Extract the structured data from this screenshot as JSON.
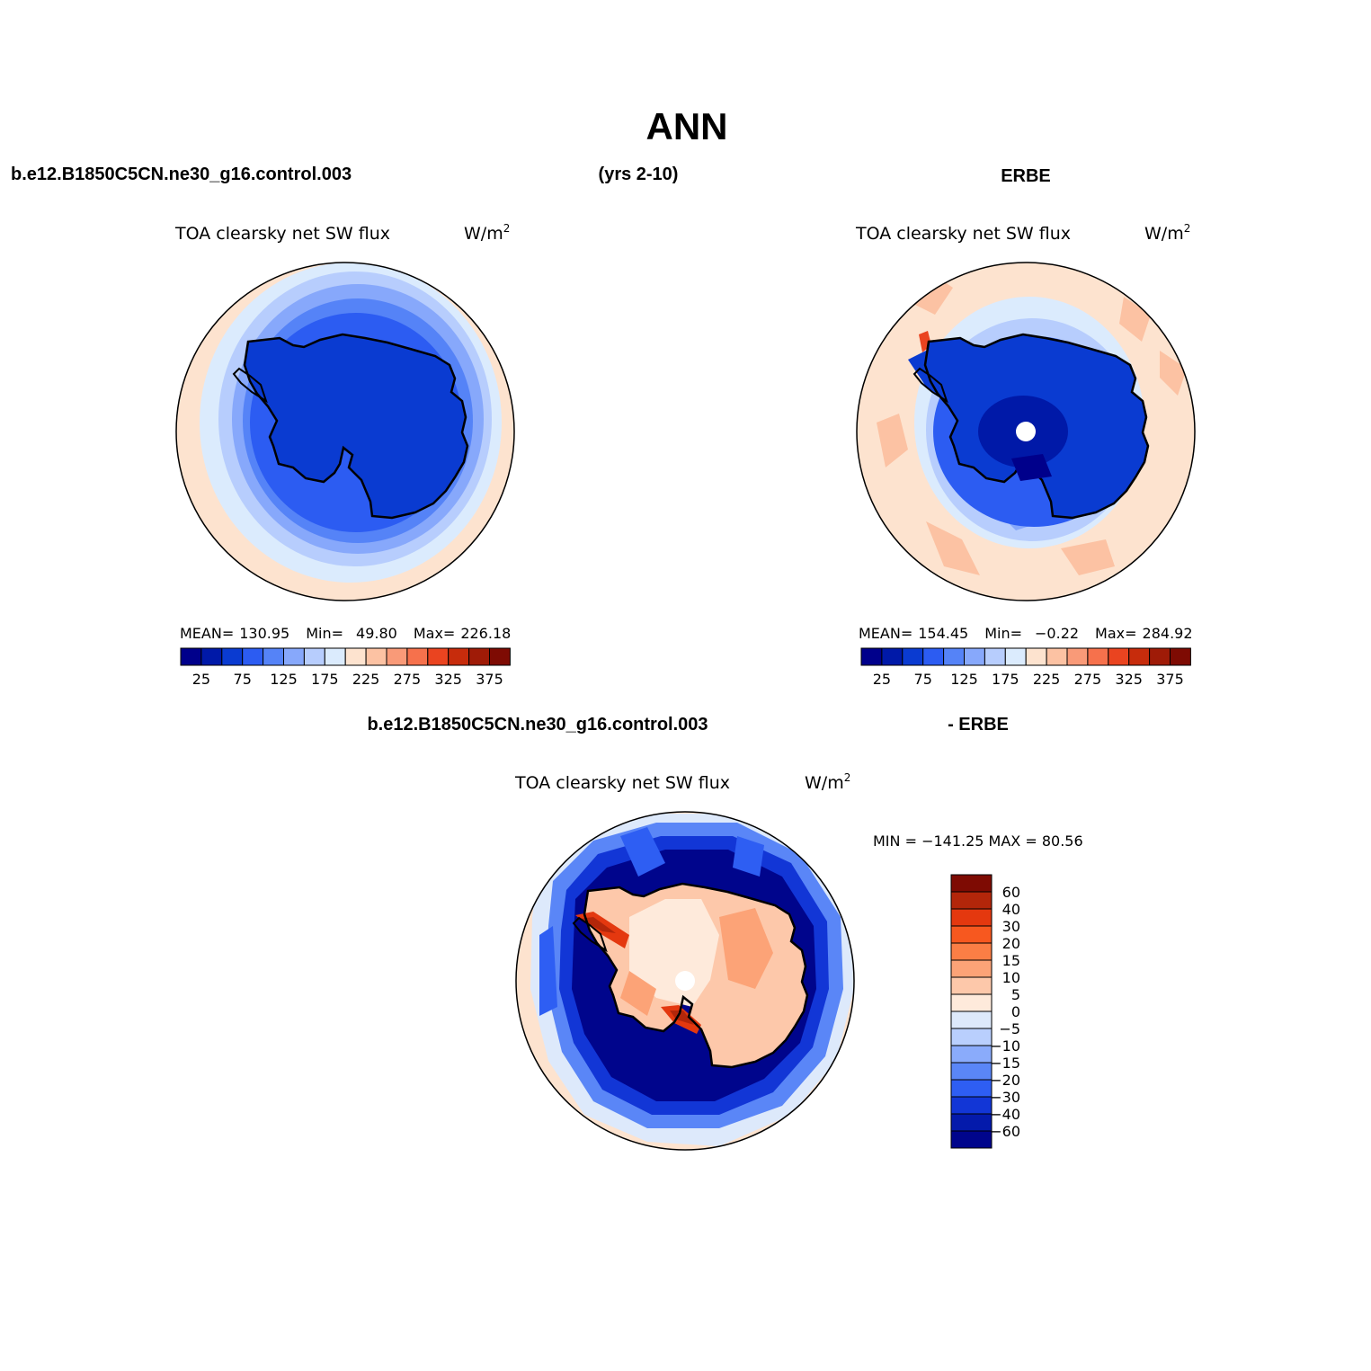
{
  "page": {
    "title": "ANN",
    "case_name": "b.e12.B1850C5CN.ne30_g16.control.003",
    "years": "(yrs 2-10)",
    "obs_name": "ERBE",
    "diff_case_name": "b.e12.B1850C5CN.ne30_g16.control.003",
    "diff_obs_name": "- ERBE"
  },
  "panels": {
    "model": {
      "variable": "TOA clearsky net SW flux",
      "units_base": "W/m",
      "units_exp": "2",
      "stats": {
        "mean_label": "MEAN=",
        "mean": "130.95",
        "min_label": "Min=",
        "min": "49.80",
        "max_label": "Max=",
        "max": "226.18"
      }
    },
    "obs": {
      "variable": "TOA clearsky net SW flux",
      "units_base": "W/m",
      "units_exp": "2",
      "stats": {
        "mean_label": "MEAN=",
        "mean": "154.45",
        "min_label": "Min=",
        "min": "−0.22",
        "max_label": "Max=",
        "max": "284.92"
      }
    },
    "diff": {
      "variable": "TOA clearsky net SW flux",
      "units_base": "W/m",
      "units_exp": "2",
      "minmax": "MIN = −141.25 MAX =  80.56"
    }
  },
  "colorbar_main": {
    "colors": [
      "#00008b",
      "#0019a8",
      "#0a3bd1",
      "#2c5cf2",
      "#5583f7",
      "#87a8fb",
      "#b7cdfd",
      "#dbebfd",
      "#fde3cf",
      "#fcc2a3",
      "#f99a78",
      "#f6714c",
      "#ea4420",
      "#c72c0c",
      "#9f1b07",
      "#7e0b03"
    ],
    "labels": [
      "25",
      "75",
      "125",
      "175",
      "225",
      "275",
      "325",
      "375"
    ]
  },
  "colorbar_diff": {
    "colors_top_to_bottom": [
      "#7e0b03",
      "#b3260a",
      "#e4380f",
      "#f7581f",
      "#fb7e45",
      "#fca377",
      "#fdc8aa",
      "#feeadb",
      "#dde9fb",
      "#b9cffd",
      "#8aabfb",
      "#5a86f7",
      "#2e5ef3",
      "#1236d6",
      "#041aab",
      "#00058c"
    ],
    "labels_top_to_bottom": [
      "60",
      "40",
      "30",
      "20",
      "15",
      "10",
      "5",
      "0",
      "−5",
      "−10",
      "−15",
      "−20",
      "−30",
      "−40",
      "−60"
    ]
  },
  "chart_data": [
    {
      "type": "heatmap",
      "projection": "south polar stereographic",
      "title": "TOA clearsky net SW flux",
      "units": "W/m^2",
      "source": "b.e12.B1850C5CN.ne30_g16.control.003",
      "mean": 130.95,
      "min": 49.8,
      "max": 226.18,
      "contour_levels": [
        25,
        50,
        75,
        100,
        125,
        150,
        175,
        200,
        225,
        250,
        275,
        300,
        325,
        350,
        375
      ]
    },
    {
      "type": "heatmap",
      "projection": "south polar stereographic",
      "title": "TOA clearsky net SW flux",
      "units": "W/m^2",
      "source": "ERBE",
      "mean": 154.45,
      "min": -0.22,
      "max": 284.92,
      "contour_levels": [
        25,
        50,
        75,
        100,
        125,
        150,
        175,
        200,
        225,
        250,
        275,
        300,
        325,
        350,
        375
      ]
    },
    {
      "type": "heatmap",
      "projection": "south polar stereographic",
      "title": "TOA clearsky net SW flux",
      "units": "W/m^2",
      "source": "b.e12.B1850C5CN.ne30_g16.control.003 - ERBE",
      "min": -141.25,
      "max": 80.56,
      "contour_levels": [
        -60,
        -40,
        -30,
        -20,
        -15,
        -10,
        -5,
        0,
        5,
        10,
        15,
        20,
        30,
        40,
        60
      ]
    }
  ]
}
